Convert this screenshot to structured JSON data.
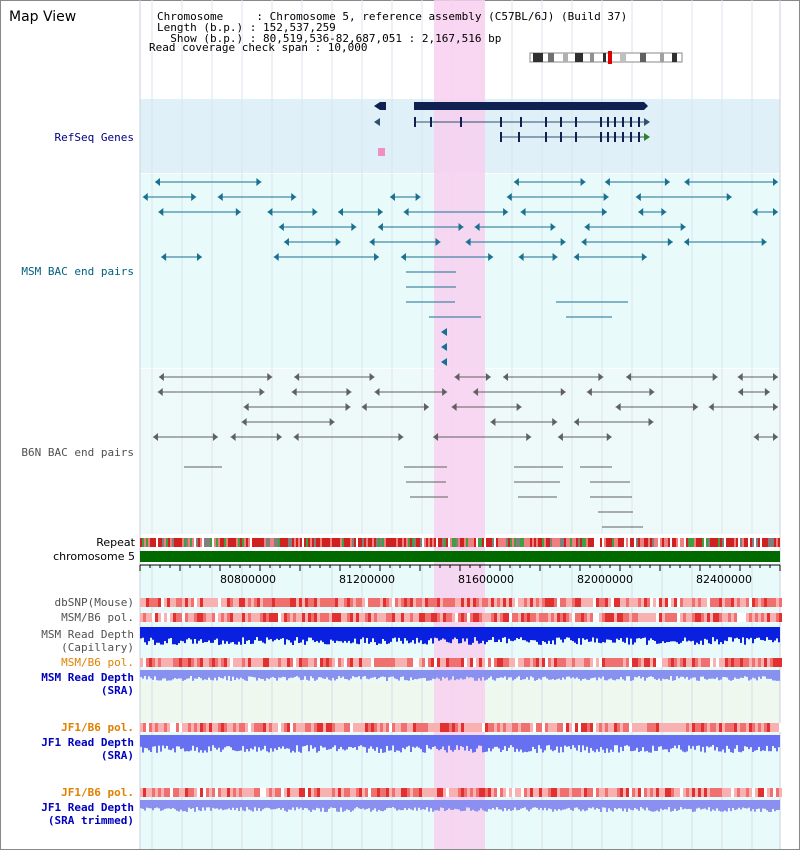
{
  "title": "Map View",
  "header": {
    "line1": "Chromosome     : Chromosome 5, reference assembly (C57BL/6J) (Build 37)",
    "line2": "Length (b.p.) : 152,537,259",
    "line3": "  Show (b.p.) : 80,519,536-82,687,051 : 2,167,516 bp",
    "line4": "Read coverage check span : 10,000"
  },
  "tracks": {
    "refseq": "RefSeq Genes",
    "msm_bac": "MSM BAC end pairs",
    "b6n_bac": "B6N BAC end pairs",
    "repeat": "Repeat",
    "chromosome": "chromosome 5",
    "dbsnp": "dbSNP(Mouse)",
    "msm_b6_pol": "MSM/B6 pol.",
    "msm_depth_cap_1": "MSM Read Depth",
    "msm_depth_cap_2": "(Capillary)",
    "msm_b6_pol_sra": "MSM/B6 pol.",
    "msm_depth_sra_1": "MSM Read Depth",
    "msm_depth_sra_2": "(SRA)",
    "jf1_b6_pol": "JF1/B6 pol.",
    "jf1_depth_1": "JF1 Read Depth",
    "jf1_depth_2": "(SRA)",
    "jf1_b6_pol_2": "JF1/B6 pol.",
    "jf1_trim_1": "JF1 Read Depth",
    "jf1_trim_2": "(SRA trimmed)"
  },
  "axis_ticks": [
    "80800000",
    "81200000",
    "81600000",
    "82000000",
    "82400000"
  ],
  "colors": {
    "refseq_label": "#000080",
    "msm_label": "#006080",
    "b6n_label": "#505050",
    "pol_orange": "#e08000",
    "depth_blue": "#0000c0",
    "highlight": "#f8d0f0"
  }
}
